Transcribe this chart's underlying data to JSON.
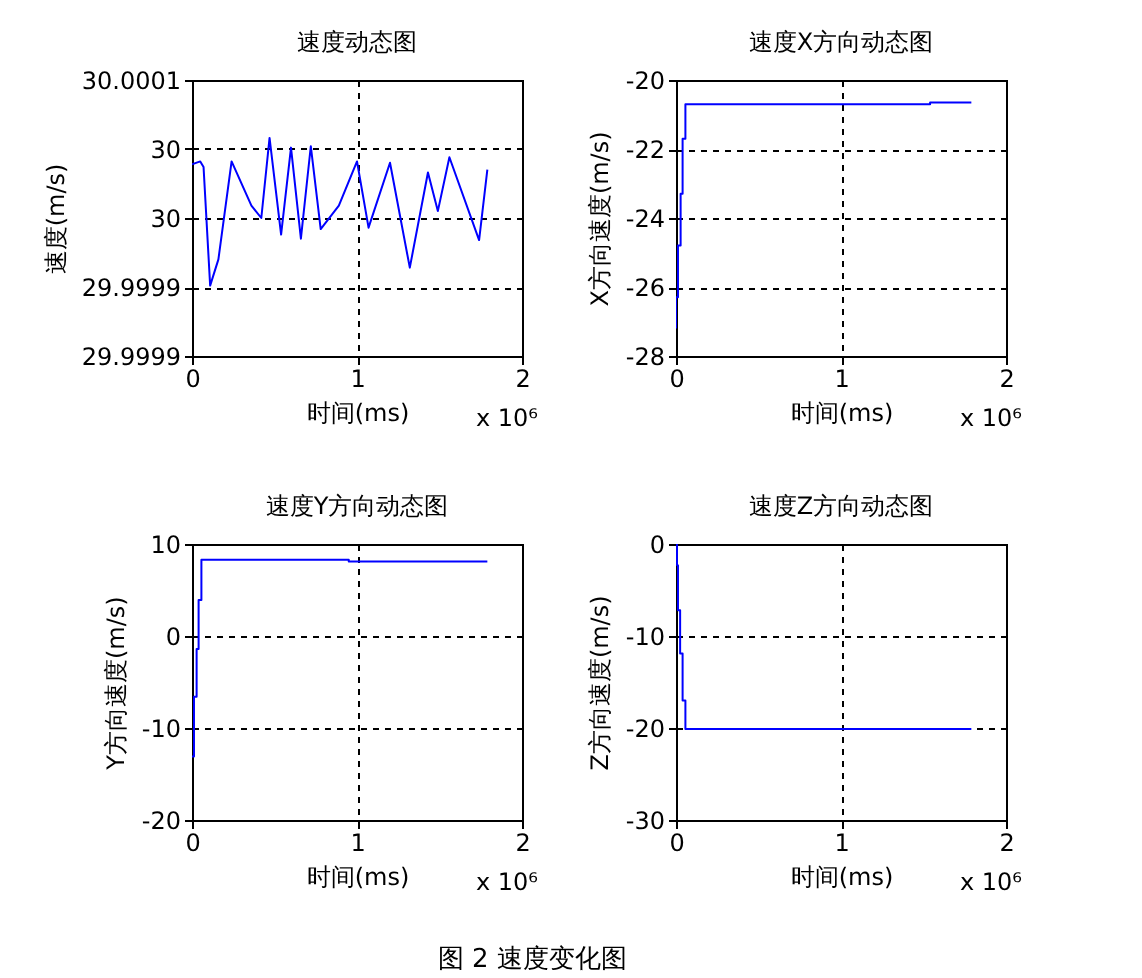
{
  "chart_data": [
    {
      "type": "line",
      "title": "速度动态图",
      "xlabel": "时间(ms)",
      "ylabel": "速度(m/s)",
      "annotations": [
        "x 10⁶"
      ],
      "x": [
        0,
        0.05,
        0.07,
        0.11,
        0.16,
        0.24,
        0.36,
        0.42,
        0.47,
        0.54,
        0.6,
        0.66,
        0.72,
        0.78,
        0.89,
        1.0,
        1.07,
        1.2,
        1.32,
        1.43,
        1.49,
        1.56,
        1.74,
        1.79
      ],
      "series": [
        {
          "color": "#0000ff",
          "values": [
            30.000039,
            30.000041,
            30.000037,
            29.999951,
            29.99997,
            30.000041,
            30.000009,
            30.0,
            30.000058,
            29.999988,
            30.000051,
            29.999985,
            30.000052,
            29.999992,
            30.000009,
            30.000041,
            29.999993,
            30.00004,
            29.999964,
            30.000033,
            30.000005,
            30.000044,
            29.999984,
            30.000035
          ]
        }
      ],
      "xlim": [
        0,
        2
      ],
      "xticks": [
        0,
        1,
        2
      ],
      "ylim": [
        29.9999,
        30.0001
      ],
      "yticks": [
        {
          "value": 29.9999,
          "label": "29.9999"
        },
        {
          "value": 29.99995,
          "label": "29.9999"
        },
        30,
        {
          "value": 30.00005,
          "label": "30"
        },
        30.0001
      ],
      "grid": true
    },
    {
      "type": "line",
      "title": "速度X方向动态图",
      "xlabel": "时间(ms)",
      "ylabel": "X方向速度(m/s)",
      "annotations": [
        "x 10⁶"
      ],
      "x": [
        0,
        0,
        0.012,
        0.012,
        0.028,
        0.028,
        0.04,
        0.04,
        0.057,
        0.057,
        1.54,
        1.54,
        1.79
      ],
      "series": [
        {
          "color": "#0000ff",
          "values": [
            -27.2,
            -26.3,
            -26.3,
            -24.8,
            -24.8,
            -23.3,
            -23.3,
            -21.7,
            -21.7,
            -20.7,
            -20.7,
            -20.65,
            -20.65
          ]
        }
      ],
      "xlim": [
        0,
        2
      ],
      "xticks": [
        0,
        1,
        2
      ],
      "ylim": [
        -28,
        -20
      ],
      "yticks": [
        -28,
        -26,
        -24,
        -22,
        -20
      ],
      "grid": true
    },
    {
      "type": "line",
      "title": "速度Y方向动态图",
      "xlabel": "时间(ms)",
      "ylabel": "Y方向速度(m/s)",
      "annotations": [
        "x 10⁶"
      ],
      "x": [
        0,
        0.012,
        0.012,
        0.028,
        0.028,
        0.04,
        0.04,
        0.057,
        0.057,
        0.95,
        0.95,
        1.79
      ],
      "series": [
        {
          "color": "#0000ff",
          "values": [
            -13.1,
            -13.1,
            -6.6,
            -6.6,
            -1.4,
            -1.4,
            3.9,
            3.9,
            8.3,
            8.3,
            8.1,
            8.1
          ]
        }
      ],
      "xlim": [
        0,
        2
      ],
      "xticks": [
        0,
        1,
        2
      ],
      "ylim": [
        -20,
        10
      ],
      "yticks": [
        -20,
        -10,
        0,
        10
      ],
      "grid": true
    },
    {
      "type": "line",
      "title": "速度Z方向动态图",
      "xlabel": "时间(ms)",
      "ylabel": "Z方向速度(m/s)",
      "annotations": [
        "x 10⁶",
        "图 2 速度变化图"
      ],
      "x": [
        0,
        0.006,
        0.006,
        0.012,
        0.012,
        0.025,
        0.025,
        0.04,
        0.04,
        0.057,
        0.057,
        1.79
      ],
      "series": [
        {
          "color": "#0000ff",
          "values": [
            0,
            0,
            -2.3,
            -2.3,
            -7.2,
            -7.2,
            -11.9,
            -11.9,
            -17,
            -17,
            -20.1,
            -20.1
          ]
        }
      ],
      "xlim": [
        0,
        2
      ],
      "xticks": [
        0,
        1,
        2
      ],
      "ylim": [
        -30,
        0
      ],
      "yticks": [
        -30,
        -20,
        -10,
        0
      ],
      "grid": true
    }
  ]
}
